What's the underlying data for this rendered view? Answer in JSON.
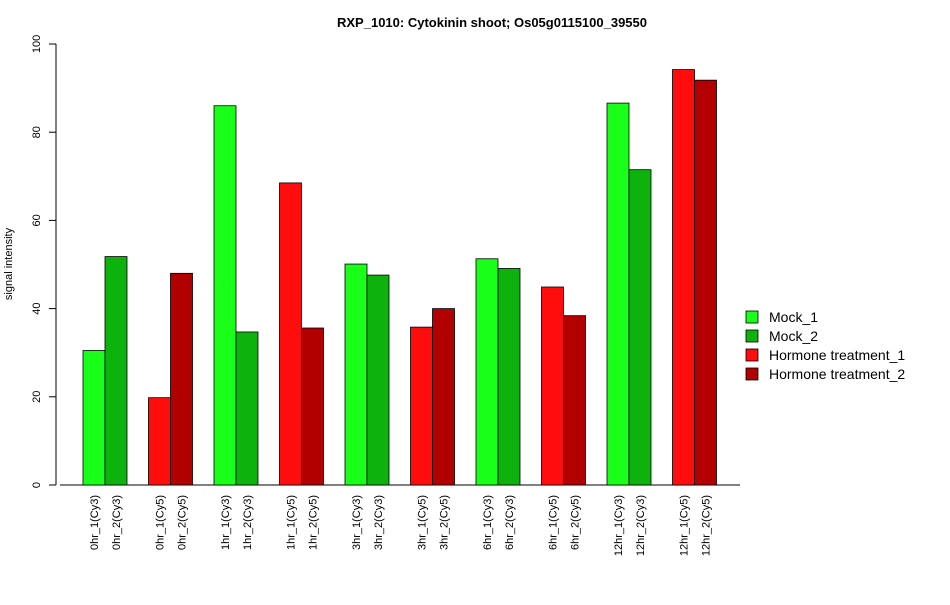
{
  "chart_data": {
    "type": "bar",
    "title": "RXP_1010: Cytokinin shoot; Os05g0115100_39550",
    "ylabel": "signal intensity",
    "xlabel": "",
    "ylim": [
      0,
      100
    ],
    "y_ticks": [
      0,
      20,
      40,
      60,
      80,
      100
    ],
    "grid": false,
    "legend_position": "right",
    "legend": [
      {
        "name": "Mock_1",
        "color": "#19FF19"
      },
      {
        "name": "Mock_2",
        "color": "#0DB20D"
      },
      {
        "name": "Hormone treatment_1",
        "color": "#FF0D0D"
      },
      {
        "name": "Hormone treatment_2",
        "color": "#B20000"
      }
    ],
    "bars": [
      {
        "label": "0hr_1(Cy3)",
        "value": 30.5,
        "series": 0
      },
      {
        "label": "0hr_2(Cy3)",
        "value": 51.8,
        "series": 1
      },
      {
        "label": "0hr_1(Cy5)",
        "value": 19.8,
        "series": 2
      },
      {
        "label": "0hr_2(Cy5)",
        "value": 48.0,
        "series": 3
      },
      {
        "label": "1hr_1(Cy3)",
        "value": 86.0,
        "series": 0
      },
      {
        "label": "1hr_2(Cy3)",
        "value": 34.7,
        "series": 1
      },
      {
        "label": "1hr_1(Cy5)",
        "value": 68.5,
        "series": 2
      },
      {
        "label": "1hr_2(Cy5)",
        "value": 35.6,
        "series": 3
      },
      {
        "label": "3hr_1(Cy3)",
        "value": 50.1,
        "series": 0
      },
      {
        "label": "3hr_2(Cy3)",
        "value": 47.6,
        "series": 1
      },
      {
        "label": "3hr_1(Cy5)",
        "value": 35.8,
        "series": 2
      },
      {
        "label": "3hr_2(Cy5)",
        "value": 40.0,
        "series": 3
      },
      {
        "label": "6hr_1(Cy3)",
        "value": 51.3,
        "series": 0
      },
      {
        "label": "6hr_2(Cy3)",
        "value": 49.1,
        "series": 1
      },
      {
        "label": "6hr_1(Cy5)",
        "value": 44.9,
        "series": 2
      },
      {
        "label": "6hr_2(Cy5)",
        "value": 38.4,
        "series": 3
      },
      {
        "label": "12hr_1(Cy3)",
        "value": 86.6,
        "series": 0
      },
      {
        "label": "12hr_2(Cy3)",
        "value": 71.5,
        "series": 1
      },
      {
        "label": "12hr_1(Cy5)",
        "value": 94.2,
        "series": 2
      },
      {
        "label": "12hr_2(Cy5)",
        "value": 91.8,
        "series": 3
      }
    ]
  }
}
